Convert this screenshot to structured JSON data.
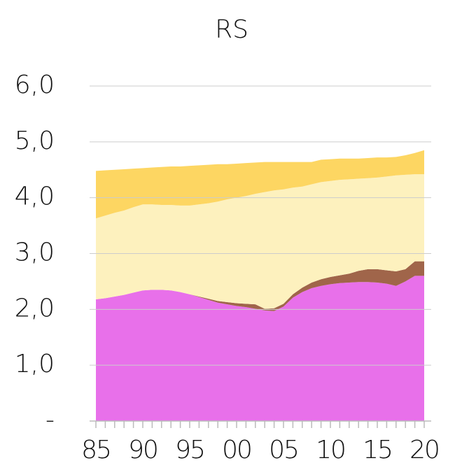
{
  "chart_data": {
    "type": "stacked_area",
    "title": "RS",
    "categories": [
      "85",
      null,
      null,
      null,
      null,
      "90",
      null,
      null,
      null,
      null,
      "95",
      null,
      null,
      null,
      null,
      "00",
      null,
      null,
      null,
      null,
      "05",
      null,
      null,
      null,
      null,
      "10",
      null,
      null,
      null,
      null,
      "15",
      null,
      null,
      null,
      null,
      "20"
    ],
    "series": [
      {
        "color": "#e870ea",
        "values": [
          2.18,
          2.2,
          2.23,
          2.26,
          2.3,
          2.34,
          2.35,
          2.35,
          2.34,
          2.31,
          2.27,
          2.22,
          2.17,
          2.12,
          2.09,
          2.06,
          2.04,
          2.01,
          1.98,
          1.97,
          2.05,
          2.21,
          2.31,
          2.38,
          2.42,
          2.45,
          2.47,
          2.48,
          2.49,
          2.49,
          2.48,
          2.46,
          2.42,
          2.5,
          2.6,
          2.6
        ]
      },
      {
        "color": "#a0654a",
        "values": [
          0,
          0,
          0,
          0,
          0,
          0,
          0,
          0,
          0,
          0,
          0,
          0.01,
          0.02,
          0.03,
          0.04,
          0.05,
          0.06,
          0.08,
          0.03,
          0.05,
          0.05,
          0.06,
          0.08,
          0.1,
          0.12,
          0.13,
          0.14,
          0.16,
          0.2,
          0.23,
          0.24,
          0.24,
          0.26,
          0.22,
          0.26,
          0.26
        ]
      },
      {
        "color": "#fdf1be",
        "values": [
          1.45,
          1.48,
          1.5,
          1.51,
          1.53,
          1.54,
          1.53,
          1.52,
          1.53,
          1.55,
          1.59,
          1.65,
          1.71,
          1.78,
          1.84,
          1.89,
          1.93,
          1.98,
          2.09,
          2.11,
          2.05,
          1.91,
          1.81,
          1.76,
          1.74,
          1.72,
          1.71,
          1.69,
          1.65,
          1.63,
          1.64,
          1.68,
          1.72,
          1.69,
          1.56,
          1.56
        ]
      },
      {
        "color": "#fdd662",
        "values": [
          0.85,
          0.81,
          0.77,
          0.74,
          0.69,
          0.65,
          0.66,
          0.68,
          0.69,
          0.7,
          0.71,
          0.7,
          0.69,
          0.67,
          0.63,
          0.61,
          0.59,
          0.56,
          0.54,
          0.51,
          0.49,
          0.46,
          0.44,
          0.4,
          0.4,
          0.39,
          0.38,
          0.37,
          0.36,
          0.36,
          0.36,
          0.34,
          0.33,
          0.35,
          0.38,
          0.43
        ]
      }
    ],
    "ylim": [
      0,
      6
    ],
    "yticks": [
      {
        "value": 0,
        "label": "-"
      },
      {
        "value": 1,
        "label": "1,0"
      },
      {
        "value": 2,
        "label": "2,0"
      },
      {
        "value": 3,
        "label": "3,0"
      },
      {
        "value": 4,
        "label": "4,0"
      },
      {
        "value": 5,
        "label": "5,0"
      },
      {
        "value": 6,
        "label": "6,0"
      }
    ],
    "grid": true
  }
}
